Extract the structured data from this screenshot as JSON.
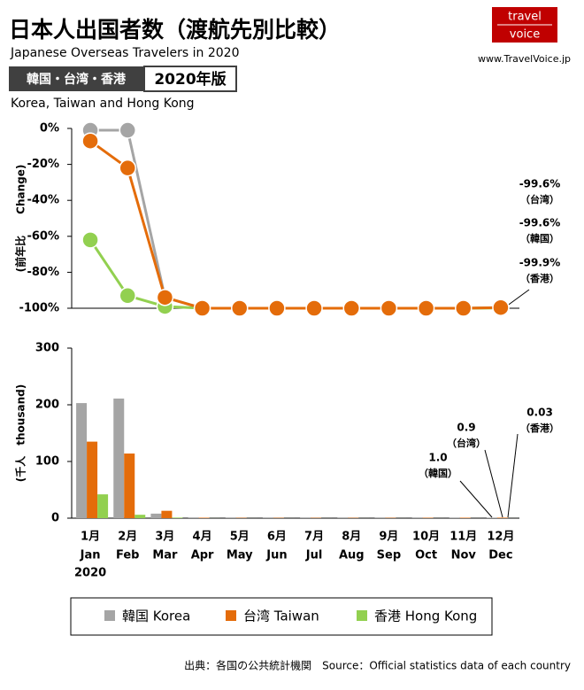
{
  "header": {
    "title": "日本人出国者数（渡航先別比較）",
    "subtitle": "Japanese Overseas Travelers in 2020",
    "badge": "韓国・台湾・香港",
    "badge_year": "2020年版",
    "region": "Korea, Taiwan and Hong Kong",
    "logo_top": "travel",
    "logo_bottom": "voice",
    "url": "www.TravelVoice.jp"
  },
  "chart_data": [
    {
      "type": "line",
      "y_label": "(前年比　　Change)",
      "ylim": [
        -100,
        0
      ],
      "yticks": [
        {
          "value": 0,
          "label": "0%"
        },
        {
          "value": -20,
          "label": "-20%"
        },
        {
          "value": -40,
          "label": "-40%"
        },
        {
          "value": -60,
          "label": "-60%"
        },
        {
          "value": -80,
          "label": "-80%"
        },
        {
          "value": -100,
          "label": "-100%"
        }
      ],
      "series": [
        {
          "name": "韓国 Korea",
          "color": "#a5a5a5",
          "values": [
            -1,
            -1,
            -94,
            -100,
            -100,
            -100,
            -100,
            -100,
            -100,
            -100,
            -100,
            -99.6
          ]
        },
        {
          "name": "香港 Hong Kong",
          "color": "#92d050",
          "values": [
            -62,
            -93,
            -99,
            -100,
            -100,
            -100,
            -100,
            -100,
            -100,
            -100,
            -100,
            -99.9
          ]
        },
        {
          "name": "台湾 Taiwan",
          "color": "#e46c0a",
          "values": [
            -7,
            -22,
            -94,
            -100,
            -100,
            -100,
            -100,
            -100,
            -100,
            -100,
            -100,
            -99.6
          ]
        }
      ],
      "annotations": [
        {
          "text": "-99.6%",
          "label": "（台湾）"
        },
        {
          "text": "-99.6%",
          "label": "（韓国）"
        },
        {
          "text": "-99.9%",
          "label": "（香港）"
        }
      ]
    },
    {
      "type": "bar",
      "y_label": "(千人　thousand)",
      "ylim": [
        0,
        300
      ],
      "yticks": [
        0,
        100,
        200,
        300
      ],
      "categories_ja": [
        "1月",
        "2月",
        "3月",
        "4月",
        "5月",
        "6月",
        "7月",
        "8月",
        "9月",
        "10月",
        "11月",
        "12月"
      ],
      "categories": [
        "Jan",
        "Feb",
        "Mar",
        "Apr",
        "May",
        "Jun",
        "Jul",
        "Aug",
        "Sep",
        "Oct",
        "Nov",
        "Dec"
      ],
      "year_label": "2020",
      "series": [
        {
          "color": "#a5a5a5",
          "values": [
            203,
            211,
            8,
            0.5,
            0.5,
            0.5,
            0.5,
            0.5,
            0.5,
            0.5,
            0.6,
            1.0
          ]
        },
        {
          "color": "#e46c0a",
          "values": [
            135,
            114,
            13,
            0.8,
            0.6,
            0.6,
            0.6,
            0.6,
            0.6,
            0.7,
            0.8,
            0.9
          ]
        },
        {
          "color": "#92d050",
          "values": [
            42,
            6,
            1,
            0.1,
            0.05,
            0.05,
            0.05,
            0.05,
            0.05,
            0.05,
            0.05,
            0.03
          ]
        }
      ],
      "annotations": [
        {
          "text": "1.0",
          "label": "（韓国）"
        },
        {
          "text": "0.9",
          "label": "（台湾）"
        },
        {
          "text": "0.03",
          "label": "（香港）"
        }
      ]
    }
  ],
  "footer": "出典：各国の公共統計機関　Source：Official statistics data of each country"
}
